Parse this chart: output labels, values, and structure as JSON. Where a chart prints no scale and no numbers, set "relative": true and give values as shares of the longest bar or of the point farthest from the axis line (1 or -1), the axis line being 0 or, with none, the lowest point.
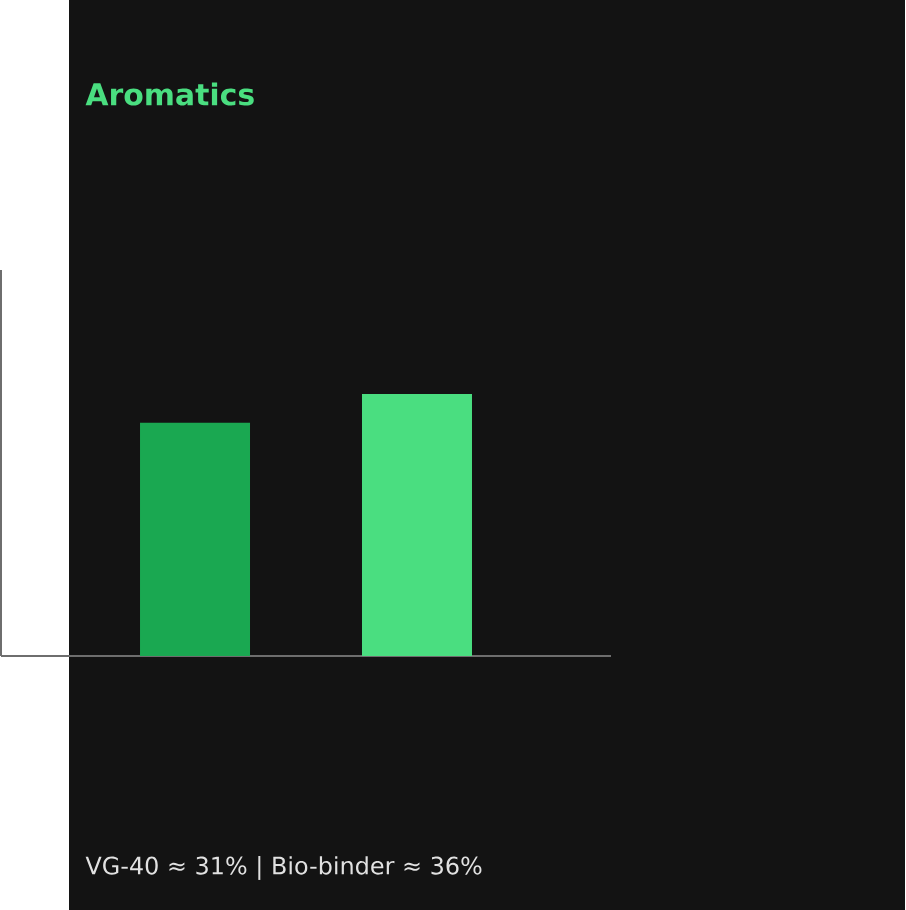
{
  "chart_data": {
    "type": "bar",
    "title": "Aromatics",
    "categories": [
      null,
      null
    ],
    "values": [
      0.89,
      1
    ],
    "colors": [
      "#1aa851",
      "#4ade80"
    ],
    "relative": true,
    "annotations": [
      "VG-40 ≈ 31% | Bio-binder ≈ 36%"
    ]
  }
}
